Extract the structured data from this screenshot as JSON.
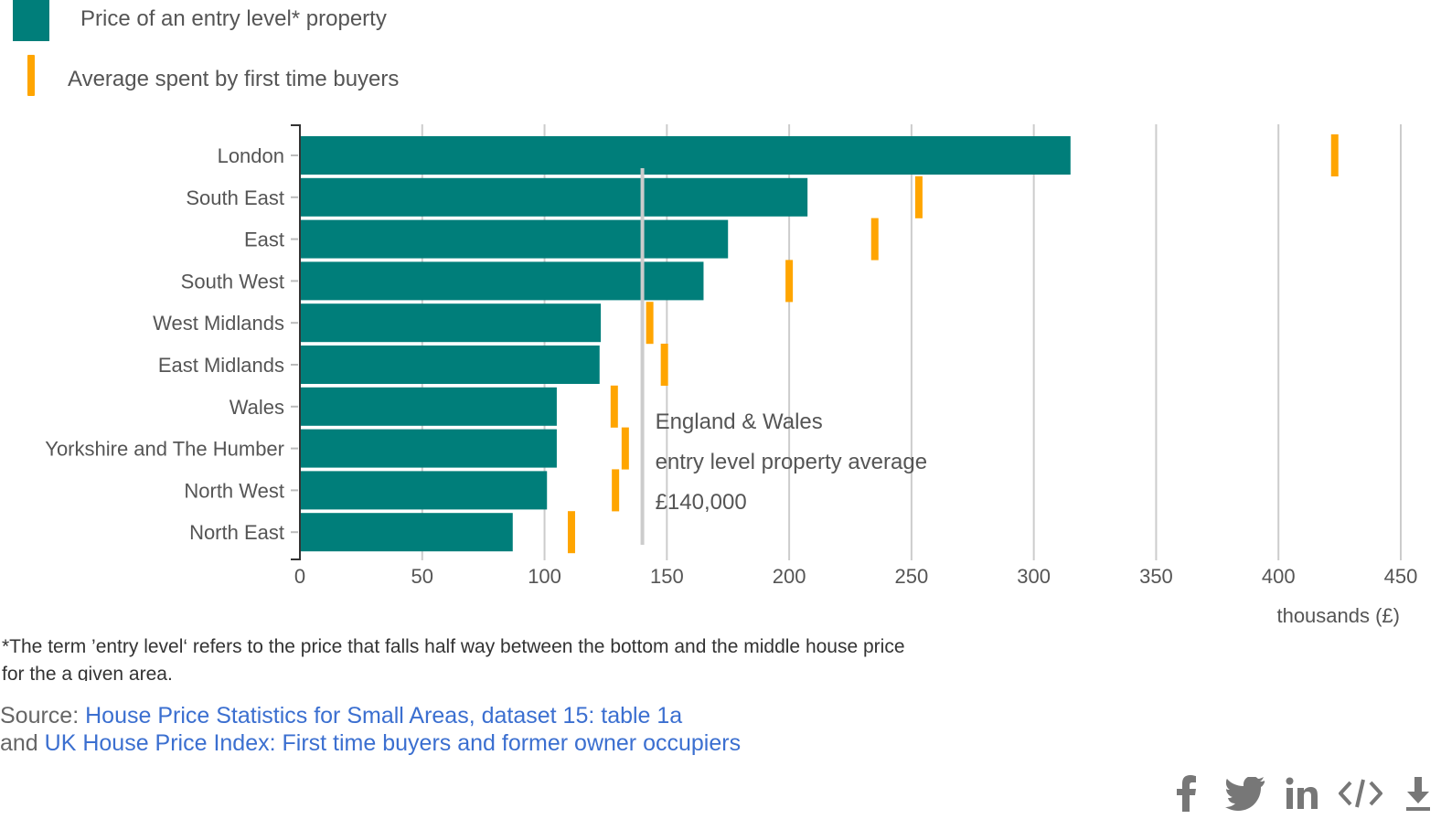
{
  "colors": {
    "bar": "#007e7a",
    "tick": "#ffa500",
    "grid": "#cccccc",
    "reference_line": "#cccccc",
    "text": "#555555",
    "link": "#3b6fd0",
    "icon": "#777777"
  },
  "legend": {
    "bar_label": "Price of an entry level* property",
    "tick_label": "Average spent by first time buyers"
  },
  "chart_data": {
    "type": "bar",
    "orientation": "horizontal",
    "categories": [
      "London",
      "South East",
      "East",
      "South West",
      "West Midlands",
      "East Midlands",
      "Wales",
      "Yorkshire and The Humber",
      "North West",
      "North East"
    ],
    "series": [
      {
        "name": "Price of an entry level* property",
        "type": "bar",
        "values": [
          315,
          207.5,
          175,
          165,
          123,
          122.5,
          105,
          105,
          101,
          87
        ]
      },
      {
        "name": "Average spent by first time buyers",
        "type": "tick",
        "values": [
          423,
          253,
          235,
          200,
          143,
          149,
          128.5,
          133,
          129,
          111
        ]
      }
    ],
    "xlim": [
      0,
      450
    ],
    "xticks": [
      0,
      50,
      100,
      150,
      200,
      250,
      300,
      350,
      400,
      450
    ],
    "xticklabels": [
      "0",
      "50",
      "100",
      "150",
      "200",
      "250",
      "300",
      "350",
      "400",
      "450"
    ],
    "xlabel": "thousands (£)",
    "ylabel": "",
    "grid": true,
    "reference_line": {
      "value": 140,
      "lines": [
        "England & Wales",
        "entry level property average",
        "£140,000"
      ]
    }
  },
  "footnote": "*The term ’entry level‘ refers to the price that falls half way between the bottom and the middle house price for the a given area.",
  "source": {
    "prefix": "Source: ",
    "link1": "House Price Statistics for Small Areas, dataset 15: table 1a",
    "joiner": "and ",
    "link2": "UK House Price Index: First time buyers and former owner occupiers"
  },
  "share_icons": [
    "facebook-icon",
    "twitter-icon",
    "linkedin-icon",
    "embed-code-icon",
    "download-icon"
  ]
}
